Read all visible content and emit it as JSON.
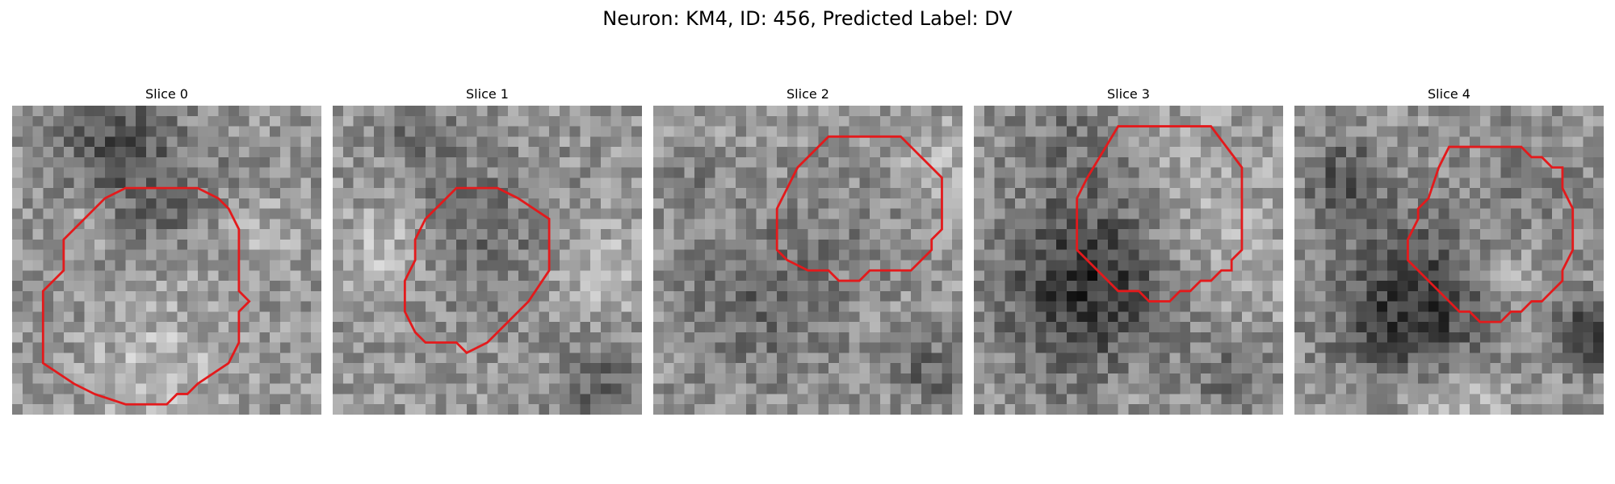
{
  "figure": {
    "title": "Neuron: KM4, ID: 456, Predicted Label: DV",
    "outline_color": "#e31a1c",
    "colormap": "gray"
  },
  "slices": [
    {
      "title": "Slice 0"
    },
    {
      "title": "Slice 1"
    },
    {
      "title": "Slice 2"
    },
    {
      "title": "Slice 3"
    },
    {
      "title": "Slice 4"
    }
  ]
}
